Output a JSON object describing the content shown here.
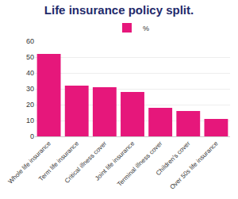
{
  "chart_data": {
    "type": "bar",
    "title": "Life insurance policy split.",
    "categories": [
      "Whole life insurance",
      "Term life insurance",
      "Critical illness cover",
      "Joint life insurance",
      "Terminal illness cover",
      "Children's cover",
      "Over 50s life insurance"
    ],
    "series": [
      {
        "name": "%",
        "color": "#e6177b",
        "values": [
          52,
          32,
          31,
          28,
          18,
          16,
          11
        ]
      }
    ],
    "ylim": [
      0,
      60
    ],
    "yticks": [
      0,
      10,
      20,
      30,
      40,
      50,
      60
    ],
    "grid": true,
    "legend": "top"
  }
}
